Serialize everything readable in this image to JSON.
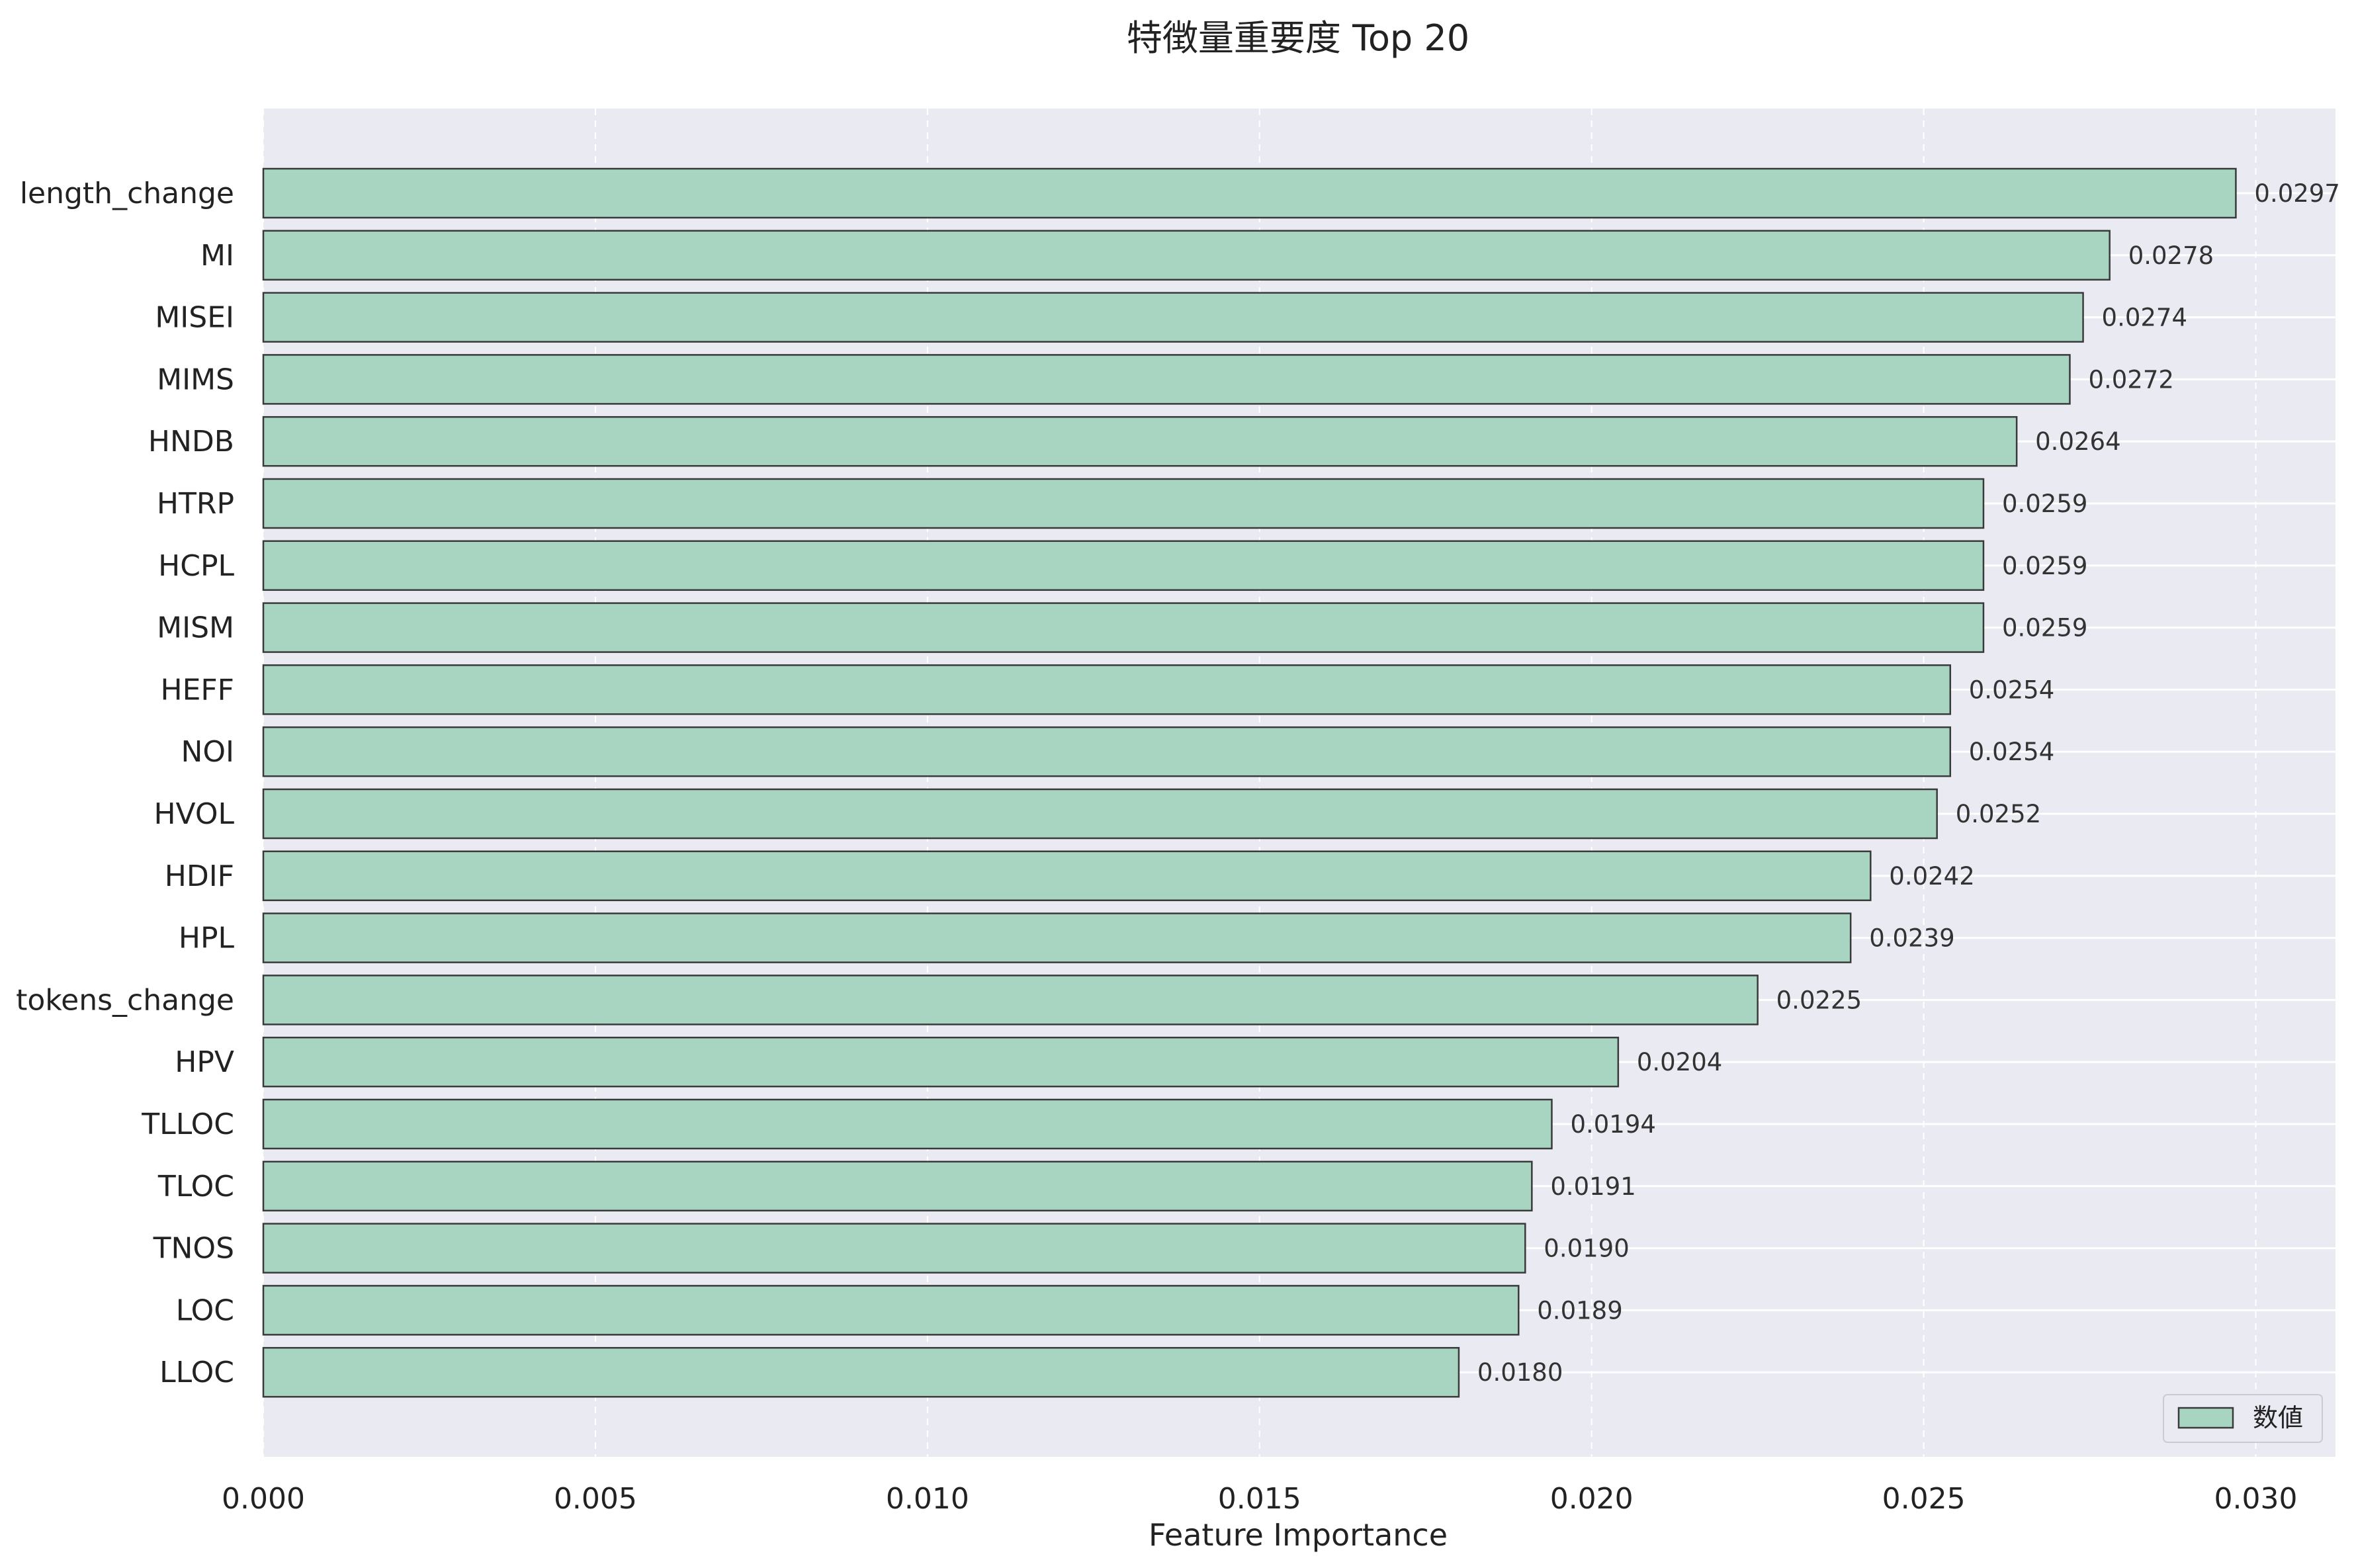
{
  "chart_data": {
    "type": "bar",
    "orientation": "horizontal",
    "title": "特徴量重要度 Top 20",
    "xlabel": "Feature Importance",
    "ylabel": "",
    "xlim": [
      0,
      0.0312
    ],
    "x_ticks": [
      "0.000",
      "0.005",
      "0.010",
      "0.015",
      "0.020",
      "0.025",
      "0.030"
    ],
    "x_tick_values": [
      0,
      0.005,
      0.01,
      0.015,
      0.02,
      0.025,
      0.03
    ],
    "categories": [
      "length_change",
      "MI",
      "MISEI",
      "MIMS",
      "HNDB",
      "HTRP",
      "HCPL",
      "MISM",
      "HEFF",
      "NOI",
      "HVOL",
      "HDIF",
      "HPL",
      "tokens_change",
      "HPV",
      "TLLOC",
      "TLOC",
      "TNOS",
      "LOC",
      "LLOC"
    ],
    "values": [
      0.0297,
      0.0278,
      0.0274,
      0.0272,
      0.0264,
      0.0259,
      0.0259,
      0.0259,
      0.0254,
      0.0254,
      0.0252,
      0.0242,
      0.0239,
      0.0225,
      0.0204,
      0.0194,
      0.0191,
      0.019,
      0.0189,
      0.018
    ],
    "value_labels": [
      "0.0297",
      "0.0278",
      "0.0274",
      "0.0272",
      "0.0264",
      "0.0259",
      "0.0259",
      "0.0259",
      "0.0254",
      "0.0254",
      "0.0252",
      "0.0242",
      "0.0239",
      "0.0225",
      "0.0204",
      "0.0194",
      "0.0191",
      "0.0190",
      "0.0189",
      "0.0180"
    ],
    "series": [
      {
        "name": "数値",
        "color": "#a8d5c2"
      }
    ],
    "legend_position": "bottom-right",
    "grid": true,
    "colors": {
      "bar": "#a8d5c2",
      "bar_edge": "#3a3a3a",
      "plot_background": "#eaeaf2",
      "grid": "#ffffff"
    }
  }
}
